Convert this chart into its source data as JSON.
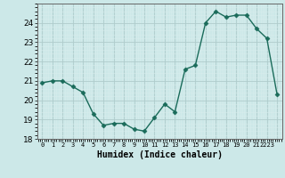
{
  "x": [
    0,
    1,
    2,
    3,
    4,
    5,
    6,
    7,
    8,
    9,
    10,
    11,
    12,
    13,
    14,
    15,
    16,
    17,
    18,
    19,
    20,
    21,
    22,
    23
  ],
  "y": [
    20.9,
    21.0,
    21.0,
    20.7,
    20.4,
    19.3,
    18.7,
    18.8,
    18.8,
    18.5,
    18.4,
    19.1,
    19.8,
    19.4,
    21.6,
    21.8,
    24.0,
    24.6,
    24.3,
    24.4,
    24.4,
    23.7,
    23.2,
    20.3
  ],
  "xlabel": "Humidex (Indice chaleur)",
  "xlim": [
    -0.5,
    23.5
  ],
  "ylim": [
    18,
    25
  ],
  "yticks": [
    18,
    19,
    20,
    21,
    22,
    23,
    24
  ],
  "line_color": "#1a6b5a",
  "marker": "D",
  "marker_size": 2.5,
  "bg_color": "#cce8e8",
  "grid_color_major": "#b0cccc",
  "grid_color_minor": "#d8ecec"
}
